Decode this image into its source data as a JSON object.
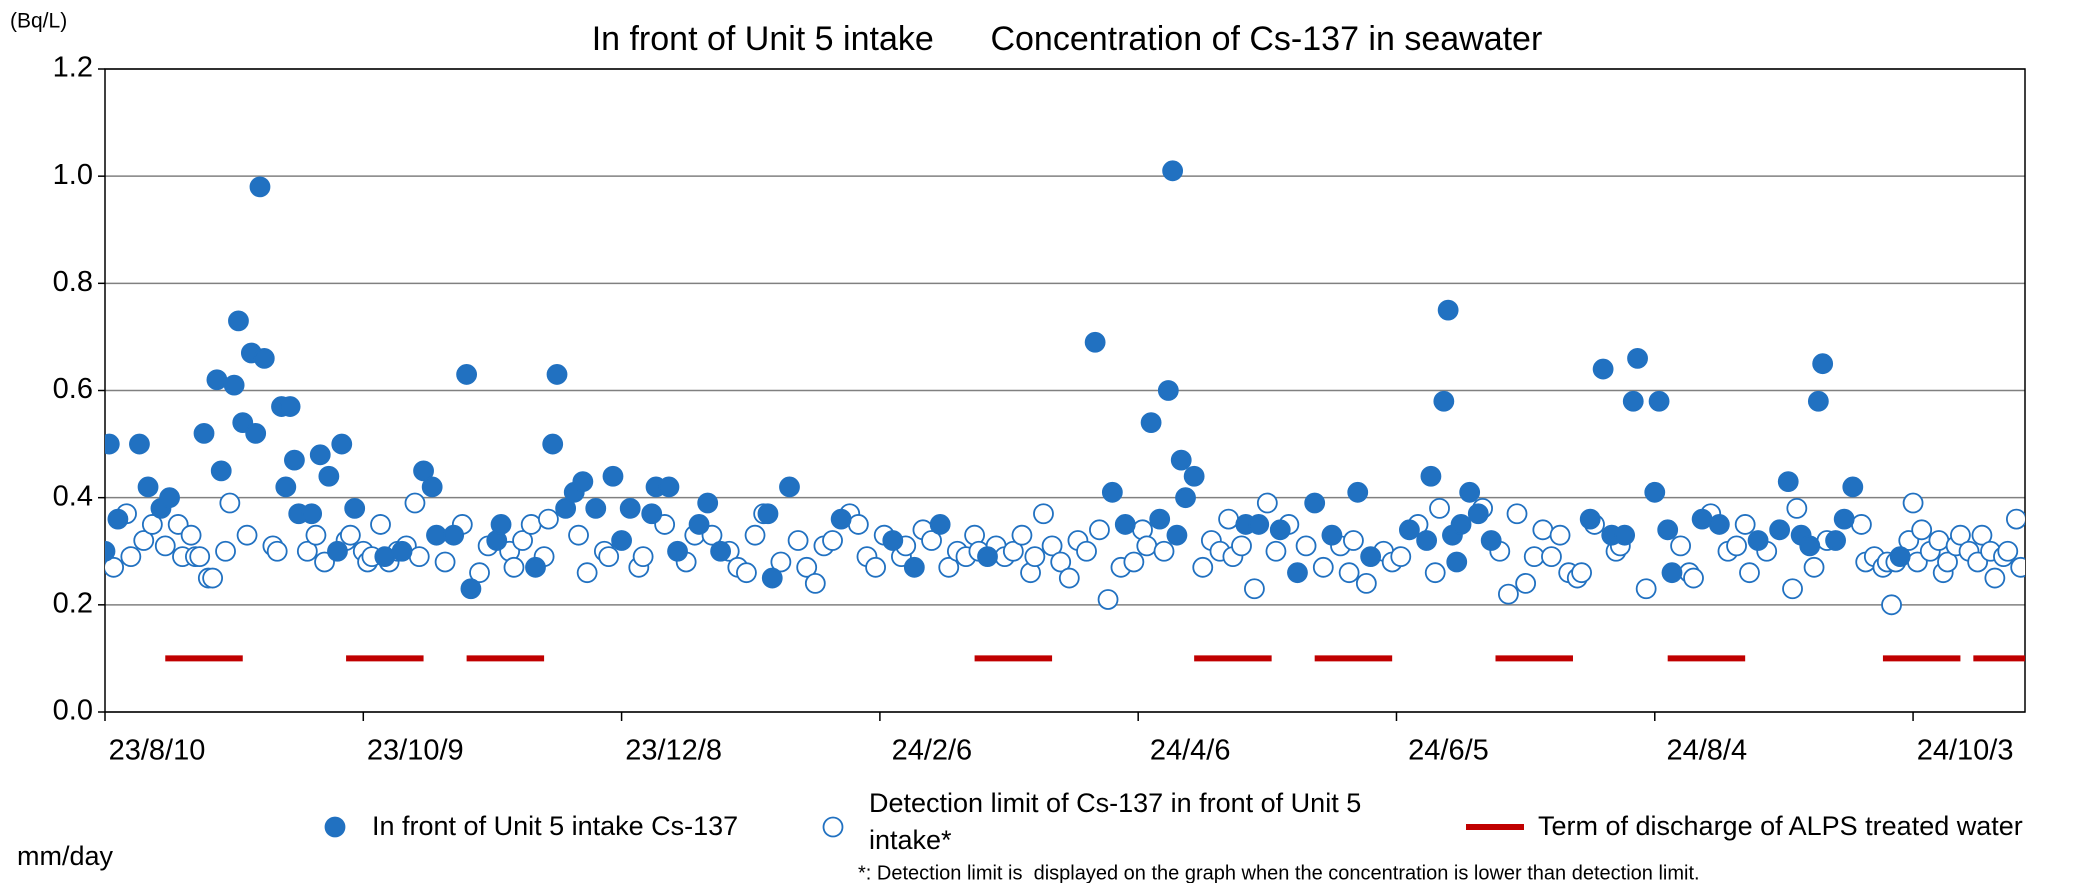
{
  "chart_data": {
    "type": "scatter",
    "title": "In front of Unit 5 intake      Concentration of Cs-137 in seawater",
    "y_unit": "(Bq/L)",
    "x_label": "mm/day",
    "footnote": "*: Detection limit is  displayed on the graph when the concentration is lower than detection limit.",
    "xlim": [
      "23/8/10",
      "24/10/29"
    ],
    "xticks": [
      "23/8/10",
      "23/10/9",
      "23/12/8",
      "24/2/6",
      "24/4/6",
      "24/6/5",
      "24/8/4",
      "24/10/3"
    ],
    "ylim": [
      0,
      1.2
    ],
    "yticks": [
      {
        "value": 0,
        "label": "0.0"
      },
      0.2,
      0.4,
      0.6,
      0.8,
      {
        "value": 1,
        "label": "1.0"
      },
      1.2
    ],
    "grid": true,
    "series": [
      {
        "name": "In front of Unit 5 intake  Cs-137",
        "color": "#2171c1",
        "marker": "filled",
        "x": [
          "23/8/10",
          "23/8/11",
          "23/8/13",
          "23/8/18",
          "23/8/20",
          "23/8/23",
          "23/8/25",
          "23/9/2",
          "23/9/5",
          "23/9/6",
          "23/9/9",
          "23/9/10",
          "23/9/11",
          "23/9/13",
          "23/9/14",
          "23/9/15",
          "23/9/16",
          "23/9/20",
          "23/9/21",
          "23/9/22",
          "23/9/23",
          "23/9/24",
          "23/9/27",
          "23/9/29",
          "23/10/1",
          "23/10/3",
          "23/10/4",
          "23/10/7",
          "23/10/14",
          "23/10/18",
          "23/10/23",
          "23/10/25",
          "23/10/26",
          "23/10/30",
          "23/11/2",
          "23/11/3",
          "23/11/9",
          "23/11/10",
          "23/11/18",
          "23/11/22",
          "23/11/23",
          "23/11/25",
          "23/11/27",
          "23/11/29",
          "23/12/2",
          "23/12/6",
          "23/12/8",
          "23/12/10",
          "23/12/15",
          "23/12/16",
          "23/12/19",
          "23/12/21",
          "23/12/26",
          "23/12/28",
          "23/12/31",
          "24/1/11",
          "24/1/12",
          "24/1/16",
          "24/1/28",
          "24/2/9",
          "24/2/14",
          "24/2/20",
          "24/3/2",
          "24/3/27",
          "24/3/31",
          "24/4/3",
          "24/4/9",
          "24/4/11",
          "24/4/13",
          "24/4/14",
          "24/4/15",
          "24/4/16",
          "24/4/17",
          "24/4/19",
          "24/5/1",
          "24/5/4",
          "24/5/9",
          "24/5/13",
          "24/5/17",
          "24/5/21",
          "24/5/27",
          "24/5/30",
          "24/6/8",
          "24/6/12",
          "24/6/13",
          "24/6/16",
          "24/6/17",
          "24/6/18",
          "24/6/19",
          "24/6/20",
          "24/6/22",
          "24/6/24",
          "24/6/27",
          "24/7/20",
          "24/7/23",
          "24/7/25",
          "24/7/28",
          "24/7/30",
          "24/7/31",
          "24/8/4",
          "24/8/5",
          "24/8/7",
          "24/8/8",
          "24/8/15",
          "24/8/19",
          "24/8/28",
          "24/9/2",
          "24/9/4",
          "24/9/7",
          "24/9/9",
          "24/9/11",
          "24/9/12",
          "24/9/15",
          "24/9/17",
          "24/9/19",
          "24/9/30"
        ],
        "values": [
          0.3,
          0.5,
          0.36,
          0.5,
          0.42,
          0.38,
          0.4,
          0.52,
          0.62,
          0.45,
          0.61,
          0.73,
          0.54,
          0.67,
          0.52,
          0.98,
          0.66,
          0.57,
          0.42,
          0.57,
          0.47,
          0.37,
          0.37,
          0.48,
          0.44,
          0.3,
          0.5,
          0.38,
          0.29,
          0.3,
          0.45,
          0.42,
          0.33,
          0.33,
          0.63,
          0.23,
          0.32,
          0.35,
          0.27,
          0.5,
          0.63,
          0.38,
          0.41,
          0.43,
          0.38,
          0.44,
          0.32,
          0.38,
          0.37,
          0.42,
          0.42,
          0.3,
          0.35,
          0.39,
          0.3,
          0.37,
          0.25,
          0.42,
          0.36,
          0.32,
          0.27,
          0.35,
          0.29,
          0.69,
          0.41,
          0.35,
          0.54,
          0.36,
          0.6,
          1.01,
          0.33,
          0.47,
          0.4,
          0.44,
          0.35,
          0.35,
          0.34,
          0.26,
          0.39,
          0.33,
          0.41,
          0.29,
          0.34,
          0.32,
          0.44,
          0.58,
          0.75,
          0.33,
          0.28,
          0.35,
          0.41,
          0.37,
          0.32,
          0.36,
          0.64,
          0.33,
          0.33,
          0.58,
          0.66,
          0.41,
          0.58,
          0.34,
          0.26,
          0.36,
          0.35,
          0.32,
          0.34,
          0.43,
          0.33,
          0.31,
          0.58,
          0.65,
          0.32,
          0.36,
          0.42,
          0.29
        ]
      },
      {
        "name": "Detection limit of Cs-137 in front of Unit 5 intake*",
        "color": "#2171c1",
        "marker": "open",
        "x": [
          "23/8/12",
          "23/8/15",
          "23/8/16",
          "23/8/19",
          "23/8/21",
          "23/8/24",
          "23/8/27",
          "23/8/28",
          "23/8/30",
          "23/8/31",
          "23/9/1",
          "23/9/3",
          "23/9/4",
          "23/9/7",
          "23/9/8",
          "23/9/12",
          "23/9/18",
          "23/9/19",
          "23/9/26",
          "23/9/28",
          "23/9/30",
          "23/10/5",
          "23/10/6",
          "23/10/9",
          "23/10/10",
          "23/10/11",
          "23/10/13",
          "23/10/15",
          "23/10/17",
          "23/10/19",
          "23/10/21",
          "23/10/22",
          "23/10/28",
          "23/11/1",
          "23/11/5",
          "23/11/7",
          "23/11/12",
          "23/11/13",
          "23/11/15",
          "23/11/17",
          "23/11/20",
          "23/11/21",
          "23/11/28",
          "23/11/30",
          "23/12/4",
          "23/12/5",
          "23/12/12",
          "23/12/13",
          "23/12/18",
          "23/12/23",
          "23/12/25",
          "23/12/29",
          "24/1/2",
          "24/1/4",
          "24/1/6",
          "24/1/8",
          "24/1/10",
          "24/1/14",
          "24/1/18",
          "24/1/20",
          "24/1/22",
          "24/1/24",
          "24/1/26",
          "24/1/30",
          "24/2/1",
          "24/2/3",
          "24/2/5",
          "24/2/7",
          "24/2/11",
          "24/2/12",
          "24/2/16",
          "24/2/18",
          "24/2/22",
          "24/2/24",
          "24/2/26",
          "24/2/28",
          "24/2/29",
          "24/3/4",
          "24/3/6",
          "24/3/8",
          "24/3/10",
          "24/3/12",
          "24/3/13",
          "24/3/15",
          "24/3/17",
          "24/3/19",
          "24/3/21",
          "24/3/23",
          "24/3/25",
          "24/3/28",
          "24/3/30",
          "24/4/2",
          "24/4/5",
          "24/4/7",
          "24/4/8",
          "24/4/12",
          "24/4/21",
          "24/4/23",
          "24/4/25",
          "24/4/27",
          "24/4/28",
          "24/4/30",
          "24/5/3",
          "24/5/6",
          "24/5/8",
          "24/5/11",
          "24/5/15",
          "24/5/19",
          "24/5/23",
          "24/5/25",
          "24/5/26",
          "24/5/29",
          "24/6/2",
          "24/6/4",
          "24/6/6",
          "24/6/10",
          "24/6/14",
          "24/6/15",
          "24/6/25",
          "24/6/29",
          "24/7/1",
          "24/7/3",
          "24/7/5",
          "24/7/7",
          "24/7/9",
          "24/7/11",
          "24/7/13",
          "24/7/15",
          "24/7/17",
          "24/7/18",
          "24/7/21",
          "24/7/26",
          "24/7/27",
          "24/8/2",
          "24/8/10",
          "24/8/12",
          "24/8/13",
          "24/8/17",
          "24/8/21",
          "24/8/23",
          "24/8/25",
          "24/8/26",
          "24/8/30",
          "24/9/5",
          "24/9/6",
          "24/9/10",
          "24/9/13",
          "24/9/21",
          "24/9/22",
          "24/9/24",
          "24/9/26",
          "24/9/27",
          "24/9/28",
          "24/9/29",
          "24/10/2",
          "24/10/3",
          "24/10/4",
          "24/10/5",
          "24/10/7",
          "24/10/9",
          "24/10/10",
          "24/10/11",
          "24/10/13",
          "24/10/14",
          "24/10/16",
          "24/10/18",
          "24/10/19",
          "24/10/21",
          "24/10/22",
          "24/10/24",
          "24/10/25",
          "24/10/27",
          "24/10/28"
        ],
        "values": [
          0.27,
          0.37,
          0.29,
          0.32,
          0.35,
          0.31,
          0.35,
          0.29,
          0.33,
          0.29,
          0.29,
          0.25,
          0.25,
          0.3,
          0.39,
          0.33,
          0.31,
          0.3,
          0.3,
          0.33,
          0.28,
          0.32,
          0.33,
          0.3,
          0.28,
          0.29,
          0.35,
          0.28,
          0.3,
          0.31,
          0.39,
          0.29,
          0.28,
          0.35,
          0.26,
          0.31,
          0.3,
          0.27,
          0.32,
          0.35,
          0.29,
          0.36,
          0.33,
          0.26,
          0.3,
          0.29,
          0.27,
          0.29,
          0.35,
          0.28,
          0.33,
          0.33,
          0.3,
          0.27,
          0.26,
          0.33,
          0.37,
          0.28,
          0.32,
          0.27,
          0.24,
          0.31,
          0.32,
          0.37,
          0.35,
          0.29,
          0.27,
          0.33,
          0.29,
          0.31,
          0.34,
          0.32,
          0.27,
          0.3,
          0.29,
          0.33,
          0.3,
          0.31,
          0.29,
          0.3,
          0.33,
          0.26,
          0.29,
          0.37,
          0.31,
          0.28,
          0.25,
          0.32,
          0.3,
          0.34,
          0.21,
          0.27,
          0.28,
          0.34,
          0.31,
          0.3,
          0.27,
          0.32,
          0.3,
          0.36,
          0.29,
          0.31,
          0.23,
          0.39,
          0.3,
          0.35,
          0.31,
          0.27,
          0.31,
          0.26,
          0.32,
          0.24,
          0.3,
          0.28,
          0.29,
          0.35,
          0.26,
          0.38,
          0.38,
          0.3,
          0.22,
          0.37,
          0.24,
          0.29,
          0.34,
          0.29,
          0.33,
          0.26,
          0.25,
          0.26,
          0.35,
          0.3,
          0.31,
          0.23,
          0.31,
          0.26,
          0.25,
          0.37,
          0.3,
          0.31,
          0.35,
          0.26,
          0.3,
          0.23,
          0.38,
          0.27,
          0.32,
          0.35,
          0.28,
          0.29,
          0.27,
          0.28,
          0.2,
          0.28,
          0.32,
          0.39,
          0.28,
          0.34,
          0.3,
          0.32,
          0.26,
          0.28,
          0.31,
          0.33,
          0.3,
          0.28,
          0.33,
          0.3,
          0.25,
          0.29,
          0.3,
          0.36,
          0.27
        ]
      }
    ],
    "discharge": {
      "name": "Term of discharge of ALPS treated water",
      "color": "#c00000",
      "value": 0.1,
      "periods": [
        {
          "start": "23/8/24",
          "end": "23/9/11"
        },
        {
          "start": "23/10/5",
          "end": "23/10/23"
        },
        {
          "start": "23/11/2",
          "end": "23/11/20"
        },
        {
          "start": "24/2/28",
          "end": "24/3/17"
        },
        {
          "start": "24/4/19",
          "end": "24/5/7"
        },
        {
          "start": "24/5/17",
          "end": "24/6/4"
        },
        {
          "start": "24/6/28",
          "end": "24/7/16"
        },
        {
          "start": "24/8/7",
          "end": "24/8/25"
        },
        {
          "start": "24/9/26",
          "end": "24/10/14"
        },
        {
          "start": "24/10/17",
          "end": "24/11/4"
        }
      ]
    }
  }
}
